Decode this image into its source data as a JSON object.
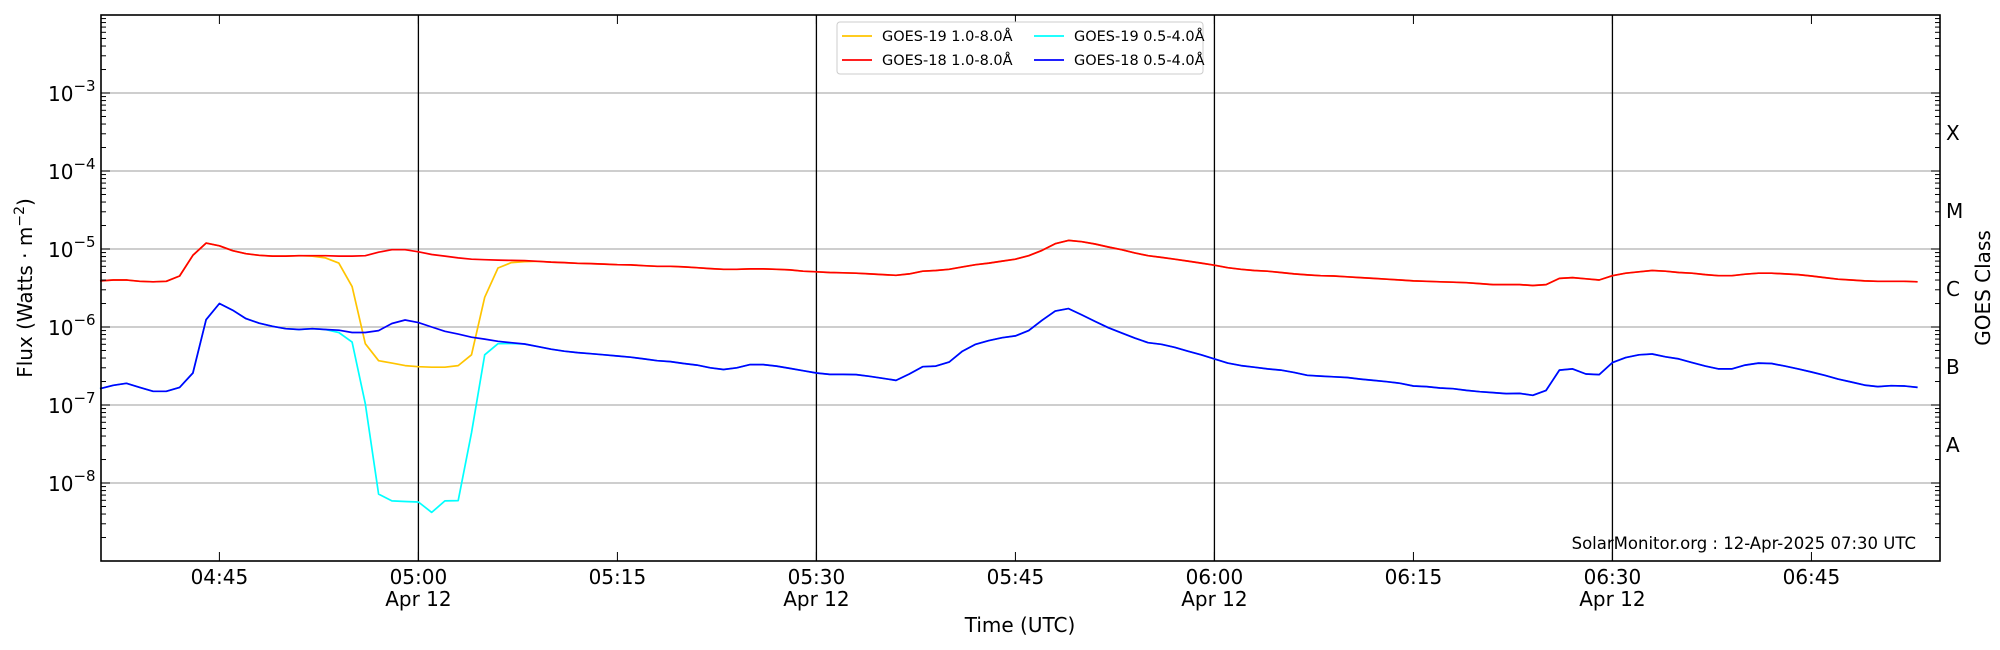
{
  "chart_data": {
    "type": "line",
    "title": "",
    "xlabel": "Time (UTC)",
    "ylabel": "Flux (Watts · m⁻²)",
    "ylabel_base": "Flux (Watts · m",
    "ylabel_exp": "−2",
    "ylabel_end": ")",
    "right_ylabel": "GOES Class",
    "yscale": "log",
    "ylim": [
      1e-09,
      0.01
    ],
    "xlim": [
      "04:36",
      "06:55"
    ],
    "x_start": "04:36",
    "x_step_minutes": 1,
    "grid": "horizontal at decades",
    "legend_position": "top-center",
    "x_ticks": [
      {
        "label": "04:45",
        "date": ""
      },
      {
        "label": "05:00",
        "date": "Apr 12"
      },
      {
        "label": "05:15",
        "date": ""
      },
      {
        "label": "05:30",
        "date": "Apr 12"
      },
      {
        "label": "05:45",
        "date": ""
      },
      {
        "label": "06:00",
        "date": "Apr 12"
      },
      {
        "label": "06:15",
        "date": ""
      },
      {
        "label": "06:30",
        "date": "Apr 12"
      },
      {
        "label": "06:45",
        "date": ""
      }
    ],
    "y_ticks": [
      {
        "base": "10",
        "exp": "−3",
        "value": 0.001
      },
      {
        "base": "10",
        "exp": "−4",
        "value": 0.0001
      },
      {
        "base": "10",
        "exp": "−5",
        "value": 1e-05
      },
      {
        "base": "10",
        "exp": "−6",
        "value": 1e-06
      },
      {
        "base": "10",
        "exp": "−7",
        "value": 1e-07
      },
      {
        "base": "10",
        "exp": "−8",
        "value": 1e-08
      }
    ],
    "goes_classes": [
      {
        "label": "A",
        "low": 1e-08,
        "high": 1e-07
      },
      {
        "label": "B",
        "low": 1e-07,
        "high": 1e-06
      },
      {
        "label": "C",
        "low": 1e-06,
        "high": 1e-05
      },
      {
        "label": "M",
        "low": 1e-05,
        "high": 0.0001
      },
      {
        "label": "X",
        "low": 0.0001,
        "high": 0.001
      }
    ],
    "series": [
      {
        "name": "GOES-19 1.0-8.0Å",
        "color": "#ffc400",
        "values": [
          3.9e-06,
          4e-06,
          4e-06,
          3.85e-06,
          3.8e-06,
          3.85e-06,
          4.5e-06,
          8.3e-06,
          1.19e-05,
          1.1e-05,
          9.5e-06,
          8.7e-06,
          8.3e-06,
          8.1e-06,
          8.1e-06,
          8.2e-06,
          8.1e-06,
          7.7e-06,
          6.6e-06,
          3.3e-06,
          6.1e-07,
          3.7e-07,
          3.45e-07,
          3.2e-07,
          3.1e-07,
          3.05e-07,
          3.05e-07,
          3.2e-07,
          4.4e-07,
          2.4e-06,
          5.7e-06,
          6.7e-06,
          6.9e-06,
          6.95e-06,
          6.8e-06,
          6.7e-06,
          6.55e-06,
          6.5e-06,
          6.4e-06,
          6.3e-06,
          6.25e-06,
          6.1e-06,
          6e-06,
          6e-06,
          5.9e-06,
          5.75e-06,
          5.6e-06,
          5.5e-06,
          5.5e-06,
          5.55e-06,
          5.55e-06,
          5.5e-06,
          5.4e-06,
          5.2e-06,
          5.1e-06,
          5e-06,
          4.95e-06,
          4.9e-06,
          4.8e-06,
          4.7e-06,
          4.6e-06,
          4.8e-06,
          5.2e-06,
          5.3e-06,
          5.5e-06,
          5.9e-06,
          6.3e-06,
          6.6e-06,
          7e-06,
          7.4e-06,
          8.2e-06,
          9.6e-06,
          1.17e-05,
          1.29e-05,
          1.24e-05,
          1.16e-05,
          1.06e-05,
          9.8e-06,
          8.9e-06,
          8.2e-06,
          7.8e-06,
          7.4e-06,
          7e-06,
          6.6e-06,
          6.2e-06,
          5.75e-06,
          5.5e-06,
          5.3e-06,
          5.2e-06,
          5e-06,
          4.8e-06,
          4.65e-06,
          4.55e-06,
          4.5e-06,
          4.4e-06,
          4.3e-06,
          4.2e-06,
          4.1e-06,
          4e-06,
          3.9e-06,
          3.85e-06,
          3.8e-06,
          3.75e-06,
          3.7e-06,
          3.6e-06,
          3.5e-06,
          3.5e-06,
          3.5e-06,
          3.4e-06,
          3.5e-06,
          4.2e-06,
          4.3e-06,
          4.15e-06,
          4e-06,
          4.55e-06,
          4.9e-06,
          5.1e-06,
          5.3e-06,
          5.2e-06,
          5e-06,
          4.9e-06,
          4.7e-06,
          4.55e-06,
          4.55e-06,
          4.75e-06,
          4.9e-06,
          4.9e-06,
          4.8e-06,
          4.7e-06,
          4.5e-06,
          4.3e-06,
          4.1e-06,
          4e-06,
          3.9e-06,
          3.85e-06,
          3.85e-06,
          3.85e-06,
          3.8e-06
        ]
      },
      {
        "name": "GOES-18 1.0-8.0Å",
        "color": "#ff0000",
        "values": [
          3.9e-06,
          4e-06,
          4e-06,
          3.85e-06,
          3.8e-06,
          3.85e-06,
          4.5e-06,
          8.3e-06,
          1.19e-05,
          1.1e-05,
          9.5e-06,
          8.7e-06,
          8.3e-06,
          8.1e-06,
          8.1e-06,
          8.2e-06,
          8.2e-06,
          8.2e-06,
          8.1e-06,
          8.1e-06,
          8.2e-06,
          9.1e-06,
          9.8e-06,
          9.8e-06,
          9.2e-06,
          8.5e-06,
          8.1e-06,
          7.7e-06,
          7.4e-06,
          7.3e-06,
          7.2e-06,
          7.15e-06,
          7.1e-06,
          6.95e-06,
          6.8e-06,
          6.7e-06,
          6.55e-06,
          6.5e-06,
          6.4e-06,
          6.3e-06,
          6.25e-06,
          6.1e-06,
          6e-06,
          6e-06,
          5.9e-06,
          5.75e-06,
          5.6e-06,
          5.5e-06,
          5.5e-06,
          5.55e-06,
          5.55e-06,
          5.5e-06,
          5.4e-06,
          5.2e-06,
          5.1e-06,
          5e-06,
          4.95e-06,
          4.9e-06,
          4.8e-06,
          4.7e-06,
          4.6e-06,
          4.8e-06,
          5.2e-06,
          5.3e-06,
          5.5e-06,
          5.9e-06,
          6.3e-06,
          6.6e-06,
          7e-06,
          7.4e-06,
          8.2e-06,
          9.6e-06,
          1.17e-05,
          1.29e-05,
          1.24e-05,
          1.16e-05,
          1.06e-05,
          9.8e-06,
          8.9e-06,
          8.2e-06,
          7.8e-06,
          7.4e-06,
          7e-06,
          6.6e-06,
          6.2e-06,
          5.75e-06,
          5.5e-06,
          5.3e-06,
          5.2e-06,
          5e-06,
          4.8e-06,
          4.65e-06,
          4.55e-06,
          4.5e-06,
          4.4e-06,
          4.3e-06,
          4.2e-06,
          4.1e-06,
          4e-06,
          3.9e-06,
          3.85e-06,
          3.8e-06,
          3.75e-06,
          3.7e-06,
          3.6e-06,
          3.5e-06,
          3.5e-06,
          3.5e-06,
          3.4e-06,
          3.5e-06,
          4.2e-06,
          4.3e-06,
          4.15e-06,
          4e-06,
          4.55e-06,
          4.9e-06,
          5.1e-06,
          5.3e-06,
          5.2e-06,
          5e-06,
          4.9e-06,
          4.7e-06,
          4.55e-06,
          4.55e-06,
          4.75e-06,
          4.9e-06,
          4.9e-06,
          4.8e-06,
          4.7e-06,
          4.5e-06,
          4.3e-06,
          4.1e-06,
          4e-06,
          3.9e-06,
          3.85e-06,
          3.85e-06,
          3.85e-06,
          3.8e-06
        ]
      },
      {
        "name": "GOES-19 0.5-4.0Å",
        "color": "#00ffff",
        "values": [
          1.62e-07,
          1.79e-07,
          1.9e-07,
          1.68e-07,
          1.5e-07,
          1.5e-07,
          1.68e-07,
          2.57e-07,
          1.24e-06,
          2e-06,
          1.64e-06,
          1.28e-06,
          1.12e-06,
          1.02e-06,
          9.5e-07,
          9.3e-07,
          9.5e-07,
          9.3e-07,
          8.5e-07,
          6.4e-07,
          1.04e-07,
          7.2e-09,
          5.9e-09,
          5.8e-09,
          5.7e-09,
          4.2e-09,
          5.9e-09,
          5.95e-09,
          4.4e-08,
          4.4e-07,
          6.1e-07,
          6.15e-07,
          6.05e-07,
          5.6e-07,
          5.2e-07,
          4.9e-07,
          4.7e-07,
          4.55e-07,
          4.4e-07,
          4.25e-07,
          4.1e-07,
          3.9e-07,
          3.7e-07,
          3.6e-07,
          3.4e-07,
          3.25e-07,
          3e-07,
          2.85e-07,
          3e-07,
          3.3e-07,
          3.3e-07,
          3.15e-07,
          2.95e-07,
          2.75e-07,
          2.57e-07,
          2.47e-07,
          2.47e-07,
          2.45e-07,
          2.33e-07,
          2.2e-07,
          2.07e-07,
          2.5e-07,
          3.1e-07,
          3.15e-07,
          3.55e-07,
          4.9e-07,
          6e-07,
          6.7e-07,
          7.3e-07,
          7.7e-07,
          9e-07,
          1.22e-06,
          1.6e-06,
          1.72e-06,
          1.43e-06,
          1.18e-06,
          9.8e-07,
          8.4e-07,
          7.2e-07,
          6.3e-07,
          6e-07,
          5.5e-07,
          4.9e-07,
          4.4e-07,
          3.9e-07,
          3.45e-07,
          3.2e-07,
          3.05e-07,
          2.9e-07,
          2.8e-07,
          2.62e-07,
          2.4e-07,
          2.35e-07,
          2.3e-07,
          2.25e-07,
          2.15e-07,
          2.07e-07,
          1.99e-07,
          1.9e-07,
          1.75e-07,
          1.72e-07,
          1.65e-07,
          1.62e-07,
          1.54e-07,
          1.48e-07,
          1.44e-07,
          1.4e-07,
          1.41e-07,
          1.33e-07,
          1.54e-07,
          2.8e-07,
          2.9e-07,
          2.5e-07,
          2.45e-07,
          3.5e-07,
          4.05e-07,
          4.4e-07,
          4.5e-07,
          4.15e-07,
          3.9e-07,
          3.5e-07,
          3.15e-07,
          2.9e-07,
          2.9e-07,
          3.25e-07,
          3.45e-07,
          3.4e-07,
          3.15e-07,
          2.9e-07,
          2.65e-07,
          2.4e-07,
          2.15e-07,
          1.97e-07,
          1.8e-07,
          1.72e-07,
          1.77e-07,
          1.75e-07,
          1.68e-07
        ]
      },
      {
        "name": "GOES-18 0.5-4.0Å",
        "color": "#0000ff",
        "values": [
          1.62e-07,
          1.79e-07,
          1.9e-07,
          1.68e-07,
          1.5e-07,
          1.5e-07,
          1.68e-07,
          2.57e-07,
          1.24e-06,
          2e-06,
          1.64e-06,
          1.28e-06,
          1.12e-06,
          1.02e-06,
          9.5e-07,
          9.3e-07,
          9.5e-07,
          9.3e-07,
          9.1e-07,
          8.5e-07,
          8.5e-07,
          9e-07,
          1.11e-06,
          1.23e-06,
          1.14e-06,
          1e-06,
          8.8e-07,
          8.1e-07,
          7.4e-07,
          7e-07,
          6.55e-07,
          6.3e-07,
          6.05e-07,
          5.6e-07,
          5.2e-07,
          4.9e-07,
          4.7e-07,
          4.55e-07,
          4.4e-07,
          4.25e-07,
          4.1e-07,
          3.9e-07,
          3.7e-07,
          3.6e-07,
          3.4e-07,
          3.25e-07,
          3e-07,
          2.85e-07,
          3e-07,
          3.3e-07,
          3.3e-07,
          3.15e-07,
          2.95e-07,
          2.75e-07,
          2.57e-07,
          2.47e-07,
          2.47e-07,
          2.45e-07,
          2.33e-07,
          2.2e-07,
          2.07e-07,
          2.5e-07,
          3.1e-07,
          3.15e-07,
          3.55e-07,
          4.9e-07,
          6e-07,
          6.7e-07,
          7.3e-07,
          7.7e-07,
          9e-07,
          1.22e-06,
          1.6e-06,
          1.72e-06,
          1.43e-06,
          1.18e-06,
          9.8e-07,
          8.4e-07,
          7.2e-07,
          6.3e-07,
          6e-07,
          5.5e-07,
          4.9e-07,
          4.4e-07,
          3.9e-07,
          3.45e-07,
          3.2e-07,
          3.05e-07,
          2.9e-07,
          2.8e-07,
          2.62e-07,
          2.4e-07,
          2.35e-07,
          2.3e-07,
          2.25e-07,
          2.15e-07,
          2.07e-07,
          1.99e-07,
          1.9e-07,
          1.75e-07,
          1.72e-07,
          1.65e-07,
          1.62e-07,
          1.54e-07,
          1.48e-07,
          1.44e-07,
          1.4e-07,
          1.41e-07,
          1.33e-07,
          1.54e-07,
          2.8e-07,
          2.9e-07,
          2.5e-07,
          2.45e-07,
          3.5e-07,
          4.05e-07,
          4.4e-07,
          4.5e-07,
          4.15e-07,
          3.9e-07,
          3.5e-07,
          3.15e-07,
          2.9e-07,
          2.9e-07,
          3.25e-07,
          3.45e-07,
          3.4e-07,
          3.15e-07,
          2.9e-07,
          2.65e-07,
          2.4e-07,
          2.15e-07,
          1.97e-07,
          1.8e-07,
          1.72e-07,
          1.77e-07,
          1.75e-07,
          1.68e-07
        ]
      }
    ],
    "legend_order": [
      0,
      2,
      1,
      3
    ],
    "annotation": "SolarMonitor.org : 12-Apr-2025 07:30 UTC"
  }
}
